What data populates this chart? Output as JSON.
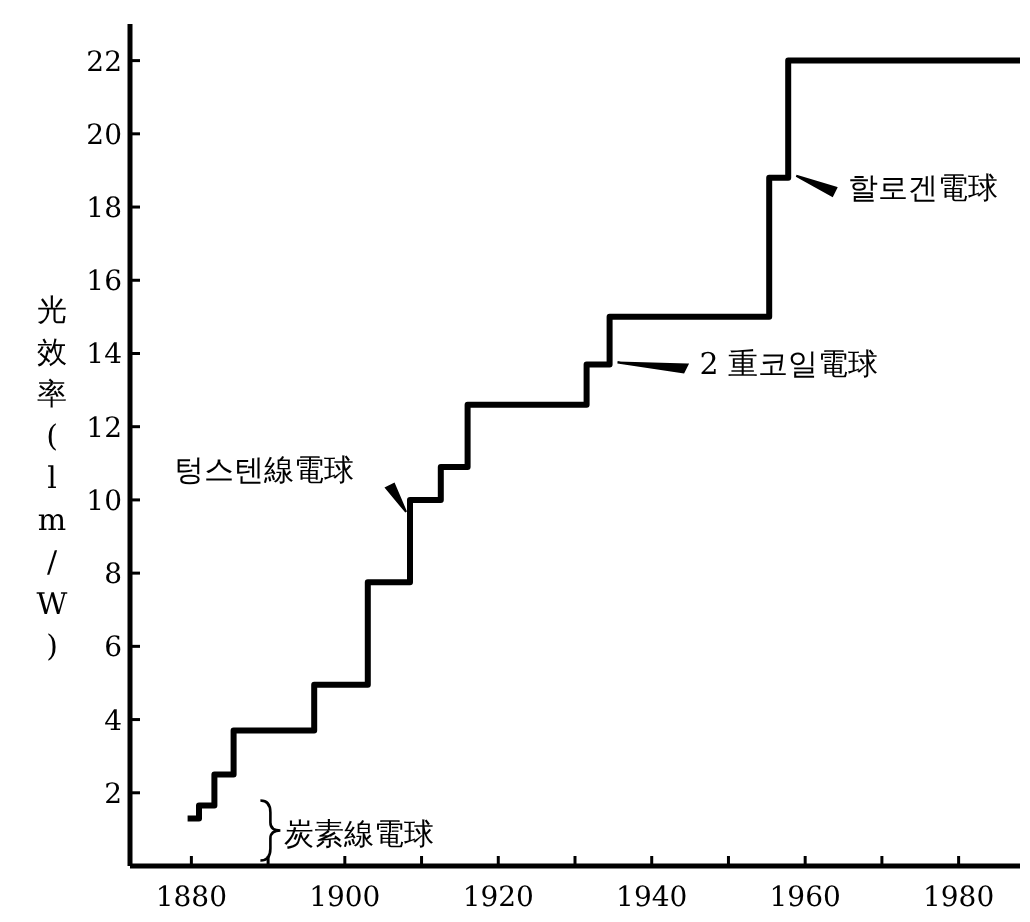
{
  "chart_data": {
    "type": "step",
    "ylabel": "光效率(lm/W)",
    "x": [
      1879.5,
      1881,
      1883,
      1885.5,
      1896,
      1903,
      1908.5,
      1912.5,
      1916,
      1931.5,
      1934.5,
      1955.3,
      1957.8,
      1988
    ],
    "values": [
      1.3,
      1.65,
      2.5,
      3.7,
      4.95,
      7.75,
      10.0,
      10.9,
      12.6,
      13.7,
      15.0,
      18.8,
      22.0,
      22.0
    ],
    "color": "#000000",
    "xlim": [
      1872,
      1988
    ],
    "ylim": [
      0,
      23
    ],
    "xticks": [
      1880,
      {
        "value": 1890,
        "label": null
      },
      1900,
      {
        "value": 1910,
        "label": null
      },
      1920,
      {
        "value": 1930,
        "label": null
      },
      1940,
      {
        "value": 1950,
        "label": null
      },
      1960,
      {
        "value": 1970,
        "label": null
      },
      1980
    ],
    "yticks": [
      2,
      4,
      6,
      8,
      10,
      12,
      14,
      16,
      18,
      20,
      22
    ],
    "grid": false,
    "annotations": [
      {
        "text": "炭素線電球",
        "x": 1883,
        "y": 2.5
      },
      {
        "text": "텅스텐線電球",
        "x": 1908.5,
        "y": 10.0
      },
      {
        "text": "2 重코일電球",
        "x": 1934.5,
        "y": 13.7
      },
      {
        "text": "할로겐電球",
        "x": 1957.8,
        "y": 18.8
      }
    ]
  }
}
